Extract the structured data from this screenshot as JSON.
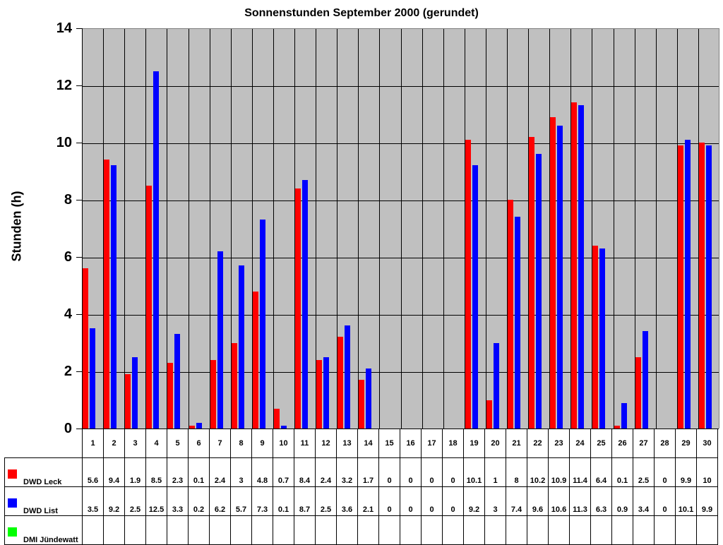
{
  "chart_data": {
    "type": "bar",
    "title": "Sonnenstunden September 2000 (gerundet)",
    "xlabel": "",
    "ylabel": "Stunden (h)",
    "ylim": [
      0,
      14
    ],
    "yticks": [
      0,
      2,
      4,
      6,
      8,
      10,
      12,
      14
    ],
    "grid": true,
    "legend_position": "data-table-left",
    "categories": [
      "1",
      "2",
      "3",
      "4",
      "5",
      "6",
      "7",
      "8",
      "9",
      "10",
      "11",
      "12",
      "13",
      "14",
      "15",
      "16",
      "17",
      "18",
      "19",
      "20",
      "21",
      "22",
      "23",
      "24",
      "25",
      "26",
      "27",
      "28",
      "29",
      "30"
    ],
    "series": [
      {
        "name": "DWD Leck",
        "color": "#ff0000",
        "values": [
          5.6,
          9.4,
          1.9,
          8.5,
          2.3,
          0.1,
          2.4,
          3,
          4.8,
          0.7,
          8.4,
          2.4,
          3.2,
          1.7,
          0,
          0,
          0,
          0,
          10.1,
          1,
          8,
          10.2,
          10.9,
          11.4,
          6.4,
          0.1,
          2.5,
          0,
          9.9,
          10
        ]
      },
      {
        "name": "DWD List",
        "color": "#0000ff",
        "values": [
          3.5,
          9.2,
          2.5,
          12.5,
          3.3,
          0.2,
          6.2,
          5.7,
          7.3,
          0.1,
          8.7,
          2.5,
          3.6,
          2.1,
          0,
          0,
          0,
          0,
          9.2,
          3,
          7.4,
          9.6,
          10.6,
          11.3,
          6.3,
          0.9,
          3.4,
          0,
          10.1,
          9.9
        ]
      },
      {
        "name": "DMI Jündewatt",
        "color": "#00ff00",
        "values": [
          null,
          null,
          null,
          null,
          null,
          null,
          null,
          null,
          null,
          null,
          null,
          null,
          null,
          null,
          null,
          null,
          null,
          null,
          null,
          null,
          null,
          null,
          null,
          null,
          null,
          null,
          null,
          null,
          null,
          null
        ]
      }
    ]
  },
  "table": {
    "rows": [
      {
        "label": "DWD Leck",
        "values": [
          "5.6",
          "9.4",
          "1.9",
          "8.5",
          "2.3",
          "0.1",
          "2.4",
          "3",
          "4.8",
          "0.7",
          "8.4",
          "2.4",
          "3.2",
          "1.7",
          "0",
          "0",
          "0",
          "0",
          "10.1",
          "1",
          "8",
          "10.2",
          "10.9",
          "11.4",
          "6.4",
          "0.1",
          "2.5",
          "0",
          "9.9",
          "10"
        ]
      },
      {
        "label": "DWD List",
        "values": [
          "3.5",
          "9.2",
          "2.5",
          "12.5",
          "3.3",
          "0.2",
          "6.2",
          "5.7",
          "7.3",
          "0.1",
          "8.7",
          "2.5",
          "3.6",
          "2.1",
          "0",
          "0",
          "0",
          "0",
          "9.2",
          "3",
          "7.4",
          "9.6",
          "10.6",
          "11.3",
          "6.3",
          "0.9",
          "3.4",
          "0",
          "10.1",
          "9.9"
        ]
      },
      {
        "label": "DMI Jündewatt",
        "values": [
          "",
          "",
          "",
          "",
          "",
          "",
          "",
          "",
          "",
          "",
          "",
          "",
          "",
          "",
          "",
          "",
          "",
          "",
          "",
          "",
          "",
          "",
          "",
          "",
          "",
          "",
          "",
          "",
          "",
          ""
        ]
      }
    ]
  }
}
